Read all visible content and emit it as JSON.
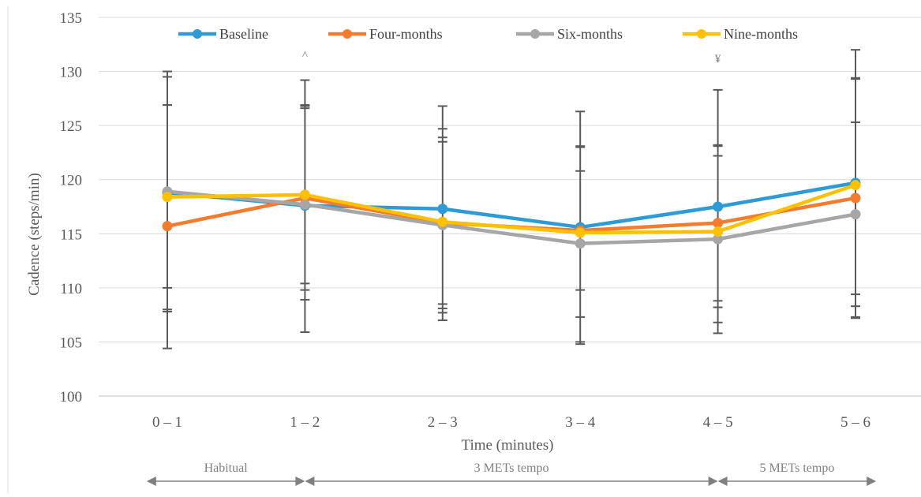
{
  "chart_data": {
    "type": "line",
    "title": "",
    "xlabel": "Time (minutes)",
    "ylabel": "Cadence (steps/min)",
    "ylim": [
      100,
      135
    ],
    "yticks": [
      100,
      105,
      110,
      115,
      120,
      125,
      130,
      135
    ],
    "grid": true,
    "legend_position": "top",
    "categories": [
      "0 – 1",
      "1 – 2",
      "2 – 3",
      "3 – 4",
      "4 – 5",
      "5 – 6"
    ],
    "series": [
      {
        "name": "Baseline",
        "color": "#2E9BD6",
        "values": [
          118.8,
          117.6,
          117.3,
          115.6,
          117.5,
          119.7
        ]
      },
      {
        "name": "Four-months",
        "color": "#F57C2F",
        "values": [
          115.7,
          118.3,
          116.0,
          115.3,
          116.0,
          118.3
        ]
      },
      {
        "name": "Six-months",
        "color": "#A6A6A6",
        "values": [
          118.9,
          117.7,
          115.8,
          114.1,
          114.5,
          116.8
        ]
      },
      {
        "name": "Nine-months",
        "color": "#FFC000",
        "values": [
          118.4,
          118.6,
          116.1,
          115.1,
          115.2,
          119.5
        ]
      }
    ],
    "error_bar_color": "#595959",
    "error_bars": [
      {
        "category": "0 – 1",
        "ranges": [
          [
            104.4,
            130.0
          ],
          [
            108.0,
            129.5
          ],
          [
            107.8,
            126.9
          ],
          [
            110.0,
            126.9
          ]
        ]
      },
      {
        "category": "1 – 2",
        "ranges": [
          [
            105.9,
            129.2
          ],
          [
            110.4,
            126.9
          ],
          [
            108.9,
            126.6
          ],
          [
            109.8,
            126.8
          ]
        ]
      },
      {
        "category": "2 – 3",
        "ranges": [
          [
            107.7,
            126.8
          ],
          [
            108.5,
            124.7
          ],
          [
            107.0,
            123.9
          ],
          [
            108.1,
            123.5
          ]
        ]
      },
      {
        "category": "3 – 4",
        "ranges": [
          [
            104.8,
            126.3
          ],
          [
            107.3,
            123.1
          ],
          [
            105.0,
            120.8
          ],
          [
            109.8,
            123.0
          ]
        ]
      },
      {
        "category": "4 – 5",
        "ranges": [
          [
            106.8,
            128.3
          ],
          [
            108.8,
            123.2
          ],
          [
            105.8,
            122.2
          ],
          [
            108.2,
            123.1
          ]
        ]
      },
      {
        "category": "5 – 6",
        "ranges": [
          [
            107.2,
            132.0
          ],
          [
            109.4,
            129.3
          ],
          [
            108.3,
            125.3
          ],
          [
            107.3,
            129.4
          ]
        ]
      }
    ],
    "annotations": [
      {
        "category": "1 – 2",
        "text": "^",
        "y": 131.5
      },
      {
        "category": "4 – 5",
        "text": "¥",
        "y": 131.2
      }
    ],
    "phases": [
      {
        "label": "Habitual",
        "from": -0.15,
        "to": 1.0
      },
      {
        "label": "3 METs tempo",
        "from": 1.0,
        "to": 4.0
      },
      {
        "label": "5 METs tempo",
        "from": 4.0,
        "to": 5.15
      }
    ]
  }
}
